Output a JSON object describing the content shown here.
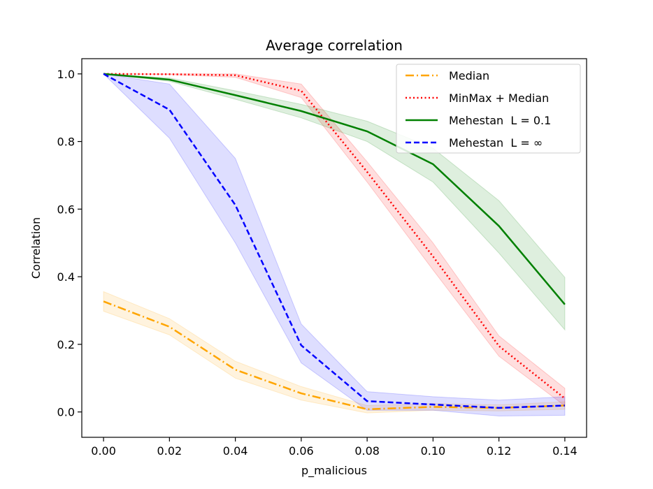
{
  "chart_data": {
    "type": "line",
    "title": "Average correlation",
    "xlabel": "p_malicious",
    "ylabel": "Correlation",
    "x": [
      0.0,
      0.02,
      0.04,
      0.06,
      0.08,
      0.1,
      0.12,
      0.14
    ],
    "x_tick_labels": [
      "0.00",
      "0.02",
      "0.04",
      "0.06",
      "0.08",
      "0.10",
      "0.12",
      "0.14"
    ],
    "y_tick_labels": [
      "0.0",
      "0.2",
      "0.4",
      "0.6",
      "0.8",
      "1.0"
    ],
    "xlim": [
      -0.0066,
      0.1466
    ],
    "ylim": [
      -0.075,
      1.045
    ],
    "grid": false,
    "legend_position": "top-right",
    "series": [
      {
        "name": "Median",
        "color": "#ffa500",
        "line_style": "dashdot",
        "values": [
          0.327,
          0.252,
          0.125,
          0.055,
          0.008,
          0.015,
          0.012,
          0.019
        ],
        "band_lower": [
          0.298,
          0.228,
          0.1,
          0.035,
          -0.003,
          0.005,
          0.003,
          0.008
        ],
        "band_upper": [
          0.356,
          0.276,
          0.15,
          0.075,
          0.019,
          0.025,
          0.021,
          0.03
        ]
      },
      {
        "name": "MinMax + Median",
        "color": "#ff0000",
        "line_style": "dotted",
        "values": [
          1.0,
          0.999,
          0.996,
          0.95,
          0.71,
          0.46,
          0.195,
          0.04
        ],
        "band_lower": [
          1.0,
          0.998,
          0.99,
          0.93,
          0.68,
          0.42,
          0.165,
          0.018
        ],
        "band_upper": [
          1.0,
          1.0,
          1.0,
          0.97,
          0.74,
          0.5,
          0.225,
          0.07
        ]
      },
      {
        "name": "Mehestan  L = 0.1",
        "color": "#008000",
        "line_style": "solid",
        "values": [
          1.0,
          0.983,
          0.937,
          0.89,
          0.83,
          0.733,
          0.55,
          0.318
        ],
        "band_lower": [
          1.0,
          0.978,
          0.925,
          0.87,
          0.8,
          0.68,
          0.47,
          0.243
        ],
        "band_upper": [
          1.0,
          0.988,
          0.95,
          0.91,
          0.86,
          0.78,
          0.625,
          0.398
        ]
      },
      {
        "name": "Mehestan  L = ∞",
        "color": "#0000ff",
        "line_style": "dashed",
        "values": [
          1.0,
          0.894,
          0.612,
          0.197,
          0.032,
          0.022,
          0.012,
          0.019
        ],
        "band_lower": [
          1.0,
          0.81,
          0.5,
          0.145,
          0.005,
          0.005,
          -0.012,
          -0.01
        ],
        "band_upper": [
          1.0,
          0.97,
          0.75,
          0.26,
          0.06,
          0.045,
          0.035,
          0.045
        ]
      }
    ]
  }
}
